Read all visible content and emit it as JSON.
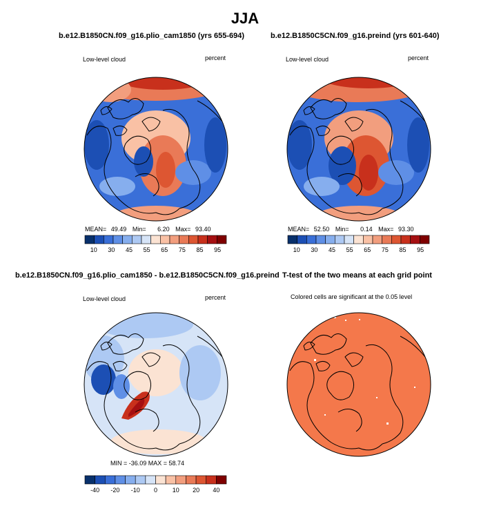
{
  "page": {
    "title": "JJA"
  },
  "panels": [
    {
      "id": "p1",
      "title": "b.e12.B1850CN.f09_g16.plio_cam1850 (yrs 655-694)",
      "left_label": "Low-level cloud",
      "right_label": "percent",
      "stats": {
        "mean_label": "MEAN=",
        "mean": "49.49",
        "min_label": "Min=",
        "min": "6.20",
        "max_label": "Max=",
        "max": "93.40"
      }
    },
    {
      "id": "p2",
      "title": "b.e12.B1850C5CN.f09_g16.preind (yrs 601-640)",
      "left_label": "Low-level cloud",
      "right_label": "percent",
      "stats": {
        "mean_label": "MEAN=",
        "mean": "52.50",
        "min_label": "Min=",
        "min": "0.14",
        "max_label": "Max=",
        "max": "93.30"
      }
    },
    {
      "id": "p3",
      "title": "b.e12.B1850CN.f09_g16.plio_cam1850 - b.e12.B1850C5CN.f09_g16.preind",
      "left_label": "Low-level cloud",
      "right_label": "percent",
      "stats": {
        "text": "MIN = -36.09  MAX =  58.74"
      }
    },
    {
      "id": "p4",
      "title": "T-test of the two means at each grid point",
      "subtitle": "Colored cells are significant at the 0.05 level"
    }
  ],
  "colorbars": {
    "abs": {
      "labels": [
        "10",
        "30",
        "45",
        "55",
        "65",
        "75",
        "85",
        "95"
      ],
      "colors": [
        "#08306b",
        "#1c4fb4",
        "#3a6fd8",
        "#5f8fe6",
        "#86aeee",
        "#adc9f3",
        "#d6e4f7",
        "#fbe3d3",
        "#f9c1a5",
        "#f29e7e",
        "#e97a57",
        "#dd5632",
        "#c8301c",
        "#a51012",
        "#7f0000"
      ]
    },
    "diff": {
      "labels": [
        "-40",
        "-20",
        "-10",
        "0",
        "10",
        "20",
        "40"
      ],
      "colors": [
        "#08306b",
        "#1c4fb4",
        "#3a6fd8",
        "#5f8fe6",
        "#86aeee",
        "#adc9f3",
        "#d6e4f7",
        "#fbe3d3",
        "#f9c1a5",
        "#f29e7e",
        "#e97a57",
        "#dd5632",
        "#c8301c",
        "#7f0000"
      ]
    }
  },
  "chart_data": [
    {
      "type": "heatmap",
      "title": "b.e12.B1850CN.f09_g16.plio_cam1850 (yrs 655-694)",
      "variable": "Low-level cloud",
      "units": "percent",
      "season": "JJA",
      "projection": "north polar stereographic",
      "mean": 49.49,
      "min": 6.2,
      "max": 93.4,
      "colorbar_levels": [
        10,
        30,
        45,
        55,
        65,
        75,
        85,
        95
      ]
    },
    {
      "type": "heatmap",
      "title": "b.e12.B1850C5CN.f09_g16.preind (yrs 601-640)",
      "variable": "Low-level cloud",
      "units": "percent",
      "season": "JJA",
      "projection": "north polar stereographic",
      "mean": 52.5,
      "min": 0.14,
      "max": 93.3,
      "colorbar_levels": [
        10,
        30,
        45,
        55,
        65,
        75,
        85,
        95
      ]
    },
    {
      "type": "heatmap",
      "title": "b.e12.B1850CN.f09_g16.plio_cam1850 - b.e12.B1850C5CN.f09_g16.preind",
      "variable": "Low-level cloud",
      "units": "percent",
      "season": "JJA",
      "min": -36.09,
      "max": 58.74,
      "colorbar_levels": [
        -40,
        -20,
        -10,
        0,
        10,
        20,
        40
      ]
    },
    {
      "type": "heatmap",
      "title": "T-test of the two means at each grid point",
      "description": "Colored cells are significant at the 0.05 level",
      "fill_color": "#f4784b"
    }
  ]
}
